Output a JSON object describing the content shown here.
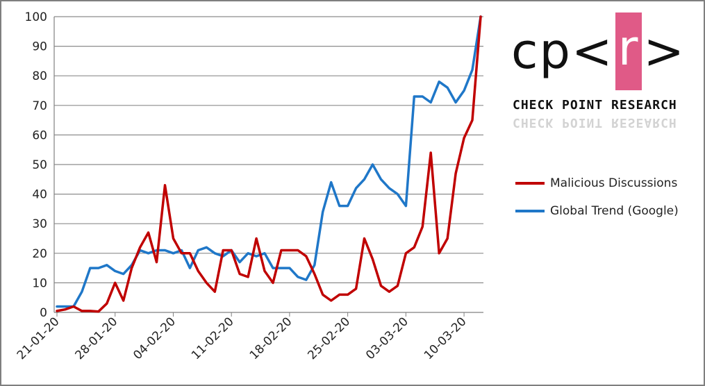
{
  "chart_data": {
    "type": "line",
    "title": "",
    "xlabel": "",
    "ylabel": "",
    "ylim": [
      0,
      100
    ],
    "yticks": [
      0,
      10,
      20,
      30,
      40,
      50,
      60,
      70,
      80,
      90,
      100
    ],
    "xtick_labels": [
      "21-01-20",
      "28-01-20",
      "04-02-20",
      "11-02-20",
      "18-02-20",
      "25-02-20",
      "03-03-20",
      "10-03-20"
    ],
    "grid": "horizontal",
    "legend_position": "right",
    "series": [
      {
        "name": "Malicious Discussions",
        "color": "#c00000",
        "values": [
          0.5,
          1,
          2,
          0.5,
          0.5,
          0.3,
          3,
          10,
          4,
          15,
          22,
          27,
          17,
          43,
          25,
          20,
          20,
          14,
          10,
          7,
          21,
          21,
          13,
          12,
          25,
          14,
          10,
          21,
          21,
          21,
          19,
          13,
          6,
          4,
          6,
          6,
          8,
          25,
          18,
          9,
          7,
          9,
          20,
          22,
          29,
          54,
          20,
          25,
          47,
          59,
          65,
          100
        ]
      },
      {
        "name": "Global Trend (Google)",
        "color": "#1f77c8",
        "values": [
          2,
          2,
          2,
          7,
          15,
          15,
          16,
          14,
          13,
          16,
          21,
          20,
          21,
          21,
          20,
          21,
          15,
          21,
          22,
          20,
          19,
          21,
          17,
          20,
          19,
          20,
          15,
          15,
          15,
          12,
          11,
          16,
          34,
          44,
          36,
          36,
          42,
          45,
          50,
          45,
          42,
          40,
          36,
          73,
          73,
          71,
          78,
          76,
          71,
          75,
          82,
          100
        ]
      }
    ]
  },
  "logo": {
    "mark_text": "cp<r>",
    "name": "CHECK POINT RESEARCH",
    "accent_color": "#e05a87"
  }
}
